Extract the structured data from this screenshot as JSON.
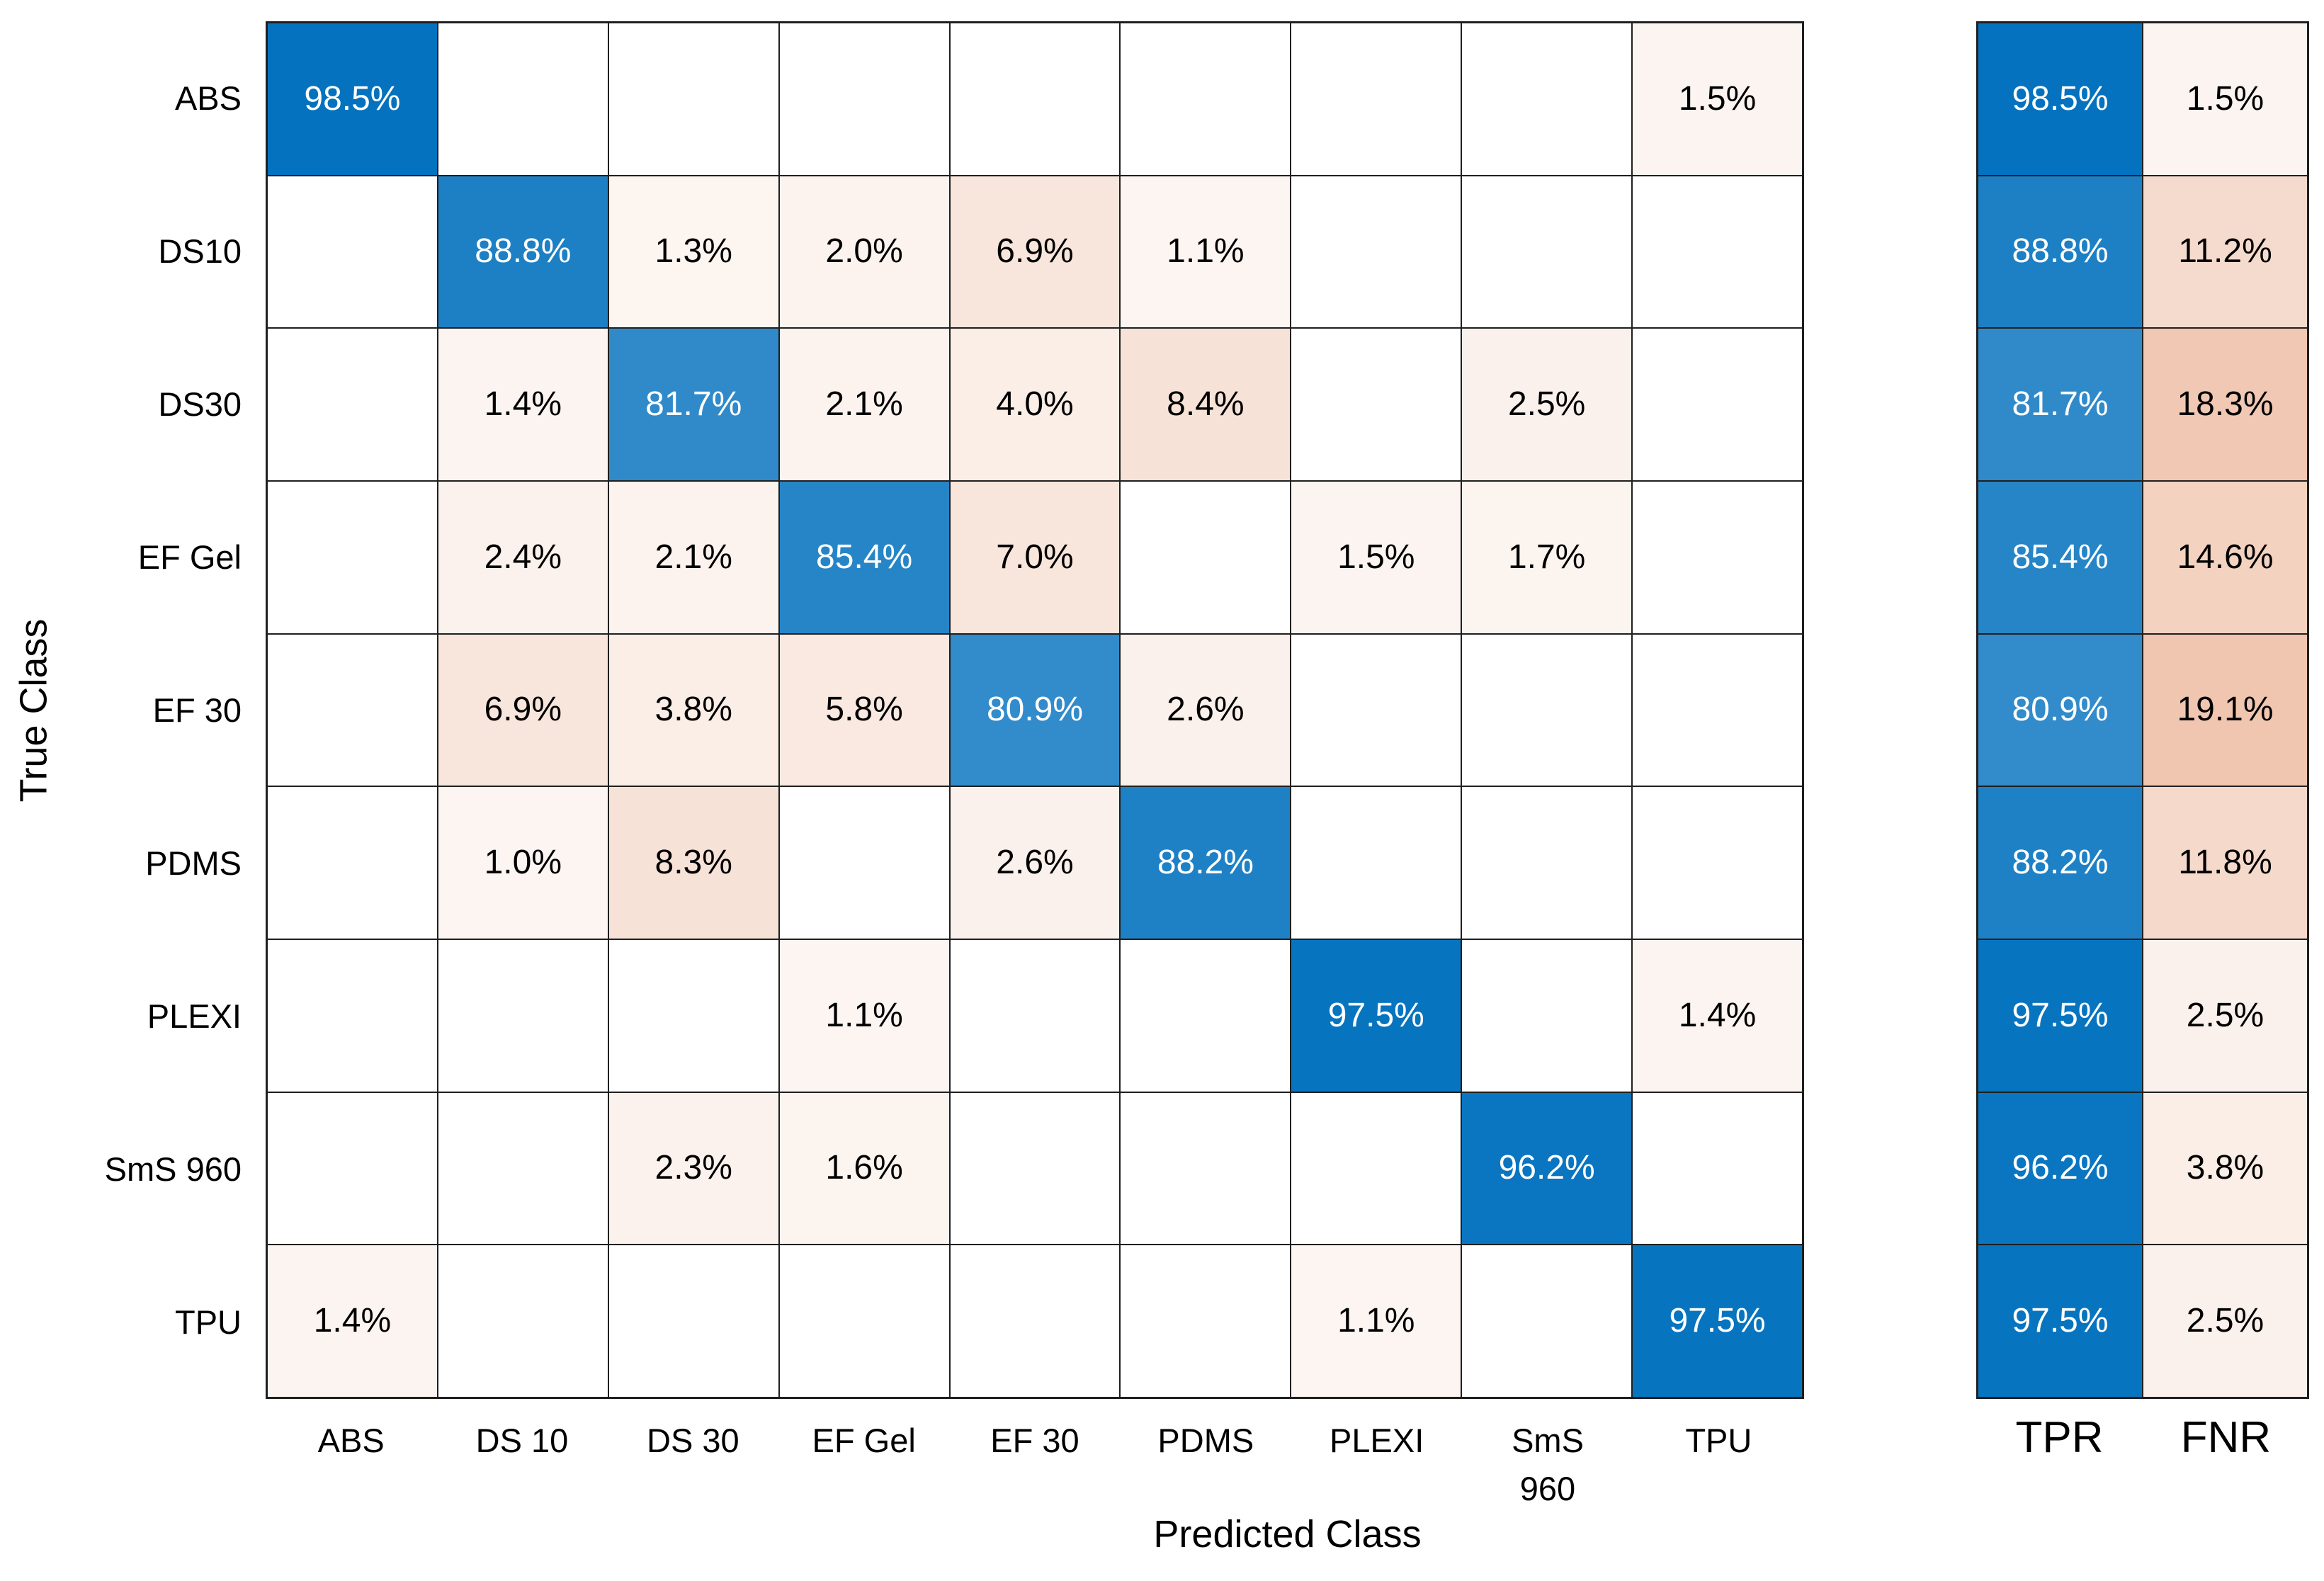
{
  "chart_data": {
    "type": "heatmap",
    "subtype": "confusion-matrix",
    "title": "",
    "xlabel": "Predicted Class",
    "ylabel": "True Class",
    "unit": "%",
    "grid": "on",
    "true_classes": [
      "ABS",
      "DS10",
      "DS30",
      "EF Gel",
      "EF 30",
      "PDMS",
      "PLEXI",
      "SmS 960",
      "TPU"
    ],
    "predicted_classes": [
      "ABS",
      "DS 10",
      "DS 30",
      "EF Gel",
      "EF 30",
      "PDMS",
      "PLEXI",
      "SmS 960",
      "TPU"
    ],
    "predicted_class_label_lines": [
      [
        "ABS"
      ],
      [
        "DS 10"
      ],
      [
        "DS 30"
      ],
      [
        "EF Gel"
      ],
      [
        "EF 30"
      ],
      [
        "PDMS"
      ],
      [
        "PLEXI"
      ],
      [
        "SmS",
        "960"
      ],
      [
        "TPU"
      ]
    ],
    "matrix": [
      [
        98.5,
        null,
        null,
        null,
        null,
        null,
        null,
        null,
        1.5
      ],
      [
        null,
        88.8,
        1.3,
        2.0,
        6.9,
        1.1,
        null,
        null,
        null
      ],
      [
        null,
        1.4,
        81.7,
        2.1,
        4.0,
        8.4,
        null,
        2.5,
        null
      ],
      [
        null,
        2.4,
        2.1,
        85.4,
        7.0,
        null,
        1.5,
        1.7,
        null
      ],
      [
        null,
        6.9,
        3.8,
        5.8,
        80.9,
        2.6,
        null,
        null,
        null
      ],
      [
        null,
        1.0,
        8.3,
        null,
        2.6,
        88.2,
        null,
        null,
        null
      ],
      [
        null,
        null,
        null,
        1.1,
        null,
        null,
        97.5,
        null,
        1.4
      ],
      [
        null,
        null,
        2.3,
        1.6,
        null,
        null,
        null,
        96.2,
        null
      ],
      [
        1.4,
        null,
        null,
        null,
        null,
        null,
        1.1,
        null,
        97.5
      ]
    ],
    "row_summary": {
      "columns": [
        "TPR",
        "FNR"
      ],
      "rows": [
        [
          98.5,
          1.5
        ],
        [
          88.8,
          11.2
        ],
        [
          81.7,
          18.3
        ],
        [
          85.4,
          14.6
        ],
        [
          80.9,
          19.1
        ],
        [
          88.2,
          11.8
        ],
        [
          97.5,
          2.5
        ],
        [
          96.2,
          3.8
        ],
        [
          97.5,
          2.5
        ]
      ]
    },
    "colors": {
      "correct_blue_strong": "#0070bd",
      "correct_blue_light": "#4f9bd1",
      "miss_pink_deep": "#efc4ad",
      "empty_cell": "#ffffff",
      "grid_line": "#1f1f1f",
      "text_on_blue": "#ffffff",
      "text_on_light": "#000000"
    }
  }
}
